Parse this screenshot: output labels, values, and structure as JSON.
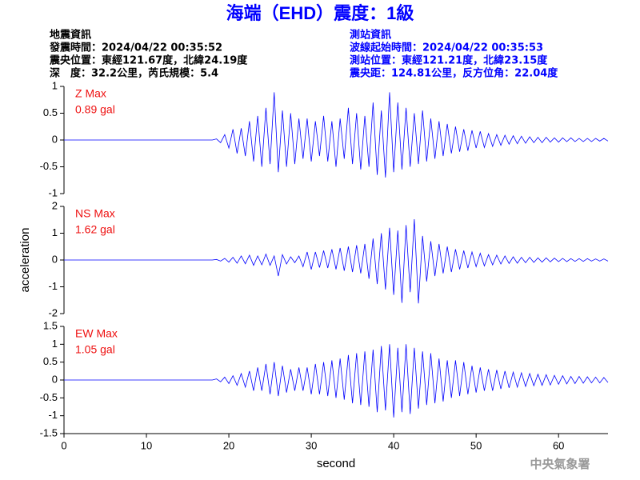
{
  "title": "海端（EHD）震度：1級",
  "left_info": [
    "地震資訊",
    "發震時間：2024/04/22 00:35:52",
    "震央位置：東經121.67度，北緯24.19度",
    "深　度：32.2公里，芮氏規模：5.4"
  ],
  "right_info": [
    "測站資訊",
    "波線起始時間：2024/04/22 00:35:53",
    "測站位置：東經121.21度，北緯23.15度",
    "震央距：124.81公里，反方位角：22.04度"
  ],
  "footer": "中央氣象署",
  "chart_data": [
    {
      "type": "line",
      "label": "Z Max",
      "max_label": "0.89 gal",
      "color": "#0000ff",
      "ylim": [
        -1,
        1
      ],
      "yticks": [
        -1,
        -0.5,
        0,
        0.5,
        1
      ],
      "xlim": [
        0,
        66
      ],
      "x": [
        0,
        18,
        18.5,
        19,
        19.5,
        20,
        20.5,
        21,
        21.5,
        22,
        22.5,
        23,
        23.5,
        24,
        24.5,
        25,
        25.5,
        26,
        26.5,
        27,
        27.5,
        28,
        28.5,
        29,
        29.5,
        30,
        30.5,
        31,
        31.5,
        32,
        32.5,
        33,
        33.5,
        34,
        34.5,
        35,
        35.5,
        36,
        36.5,
        37,
        37.5,
        38,
        38.5,
        39,
        39.5,
        40,
        40.5,
        41,
        41.5,
        42,
        42.5,
        43,
        43.5,
        44,
        44.5,
        45,
        45.5,
        46,
        46.5,
        47,
        47.5,
        48,
        48.5,
        49,
        49.5,
        50,
        50.5,
        51,
        51.5,
        52,
        52.5,
        53,
        53.5,
        54,
        54.5,
        55,
        55.5,
        56,
        56.5,
        57,
        57.5,
        58,
        58.5,
        59,
        59.5,
        60,
        60.5,
        61,
        61.5,
        62,
        62.5,
        63,
        63.5,
        64,
        64.5,
        65,
        65.5,
        66
      ],
      "values": [
        0,
        0,
        0.02,
        -0.05,
        0.1,
        -0.15,
        0.2,
        -0.25,
        0.22,
        -0.3,
        0.35,
        -0.4,
        0.45,
        -0.5,
        0.6,
        -0.45,
        0.89,
        -0.6,
        0.55,
        -0.5,
        0.5,
        -0.45,
        0.4,
        -0.35,
        0.4,
        -0.4,
        0.35,
        -0.3,
        0.45,
        -0.4,
        0.35,
        -0.5,
        0.4,
        -0.35,
        0.6,
        -0.45,
        0.5,
        -0.55,
        0.45,
        -0.5,
        0.7,
        -0.65,
        0.55,
        -0.7,
        0.89,
        -0.6,
        0.7,
        -0.55,
        0.6,
        -0.5,
        0.5,
        -0.45,
        0.55,
        -0.4,
        0.4,
        -0.35,
        0.35,
        -0.3,
        0.3,
        -0.25,
        0.25,
        -0.22,
        0.2,
        -0.2,
        0.18,
        -0.15,
        0.16,
        -0.14,
        0.12,
        -0.12,
        0.1,
        -0.1,
        0.09,
        -0.08,
        0.08,
        -0.07,
        0.07,
        -0.06,
        0.06,
        -0.05,
        0.05,
        -0.05,
        0.05,
        -0.04,
        0.04,
        -0.04,
        0.04,
        -0.03,
        0.04,
        -0.03,
        0.03,
        -0.03,
        0.03,
        -0.03,
        0.03,
        -0.02,
        0.03,
        -0.02
      ]
    },
    {
      "type": "line",
      "label": "NS Max",
      "max_label": "1.62 gal",
      "color": "#0000ff",
      "ylabel": "acceleration",
      "ylim": [
        -2,
        2
      ],
      "yticks": [
        -2,
        -1,
        0,
        1,
        2
      ],
      "xlim": [
        0,
        66
      ],
      "x": [
        0,
        18,
        18.5,
        19,
        19.5,
        20,
        20.5,
        21,
        21.5,
        22,
        22.5,
        23,
        23.5,
        24,
        24.5,
        25,
        25.5,
        26,
        26.5,
        27,
        27.5,
        28,
        28.5,
        29,
        29.5,
        30,
        30.5,
        31,
        31.5,
        32,
        32.5,
        33,
        33.5,
        34,
        34.5,
        35,
        35.5,
        36,
        36.5,
        37,
        37.5,
        38,
        38.5,
        39,
        39.5,
        40,
        40.5,
        41,
        41.5,
        42,
        42.5,
        43,
        43.5,
        44,
        44.5,
        45,
        45.5,
        46,
        46.5,
        47,
        47.5,
        48,
        48.5,
        49,
        49.5,
        50,
        50.5,
        51,
        51.5,
        52,
        52.5,
        53,
        53.5,
        54,
        54.5,
        55,
        55.5,
        56,
        56.5,
        57,
        57.5,
        58,
        58.5,
        59,
        59.5,
        60,
        60.5,
        61,
        61.5,
        62,
        62.5,
        63,
        63.5,
        64,
        64.5,
        65,
        65.5,
        66
      ],
      "values": [
        0,
        0,
        0.02,
        -0.04,
        0.06,
        -0.08,
        0.1,
        -0.12,
        0.15,
        -0.14,
        0.18,
        -0.2,
        0.15,
        -0.18,
        0.22,
        -0.2,
        0.15,
        -0.6,
        0.2,
        -0.15,
        0.12,
        -0.1,
        0.15,
        -0.25,
        0.3,
        -0.35,
        0.3,
        -0.28,
        0.35,
        -0.3,
        0.4,
        -0.35,
        0.45,
        -0.4,
        0.5,
        -0.45,
        0.55,
        -0.5,
        0.6,
        -0.7,
        0.8,
        -0.9,
        1.0,
        -1.1,
        1.2,
        -1.3,
        1.1,
        -1.6,
        1.3,
        -1.2,
        1.52,
        -1.62,
        0.9,
        -0.8,
        0.7,
        -0.6,
        0.6,
        -0.5,
        0.5,
        -0.45,
        0.4,
        -0.35,
        0.35,
        -0.3,
        0.3,
        -0.25,
        0.25,
        -0.22,
        0.2,
        -0.18,
        0.18,
        -0.15,
        0.15,
        -0.13,
        0.12,
        -0.12,
        0.1,
        -0.1,
        0.1,
        -0.09,
        0.08,
        -0.08,
        0.08,
        -0.07,
        0.07,
        -0.06,
        0.06,
        -0.06,
        0.05,
        -0.05,
        0.05,
        -0.05,
        0.05,
        -0.04,
        0.04,
        -0.04,
        0.04,
        -0.04
      ]
    },
    {
      "type": "line",
      "label": "EW Max",
      "max_label": "1.05 gal",
      "color": "#0000ff",
      "xlabel": "second",
      "ylim": [
        -1.5,
        1.5
      ],
      "yticks": [
        -1.5,
        -1,
        -0.5,
        0,
        0.5,
        1,
        1.5
      ],
      "xlim": [
        0,
        66
      ],
      "xticks": [
        0,
        10,
        20,
        30,
        40,
        50,
        60
      ],
      "x": [
        0,
        18,
        18.5,
        19,
        19.5,
        20,
        20.5,
        21,
        21.5,
        22,
        22.5,
        23,
        23.5,
        24,
        24.5,
        25,
        25.5,
        26,
        26.5,
        27,
        27.5,
        28,
        28.5,
        29,
        29.5,
        30,
        30.5,
        31,
        31.5,
        32,
        32.5,
        33,
        33.5,
        34,
        34.5,
        35,
        35.5,
        36,
        36.5,
        37,
        37.5,
        38,
        38.5,
        39,
        39.5,
        40,
        40.5,
        41,
        41.5,
        42,
        42.5,
        43,
        43.5,
        44,
        44.5,
        45,
        45.5,
        46,
        46.5,
        47,
        47.5,
        48,
        48.5,
        49,
        49.5,
        50,
        50.5,
        51,
        51.5,
        52,
        52.5,
        53,
        53.5,
        54,
        54.5,
        55,
        55.5,
        56,
        56.5,
        57,
        57.5,
        58,
        58.5,
        59,
        59.5,
        60,
        60.5,
        61,
        61.5,
        62,
        62.5,
        63,
        63.5,
        64,
        64.5,
        65,
        65.5,
        66
      ],
      "values": [
        0,
        0,
        0.03,
        -0.05,
        0.08,
        -0.1,
        0.12,
        -0.15,
        0.18,
        -0.2,
        0.25,
        -0.3,
        0.35,
        -0.3,
        0.45,
        -0.4,
        0.5,
        -0.45,
        0.4,
        -0.35,
        0.3,
        -0.3,
        0.35,
        -0.3,
        0.35,
        -0.4,
        0.45,
        -0.4,
        0.5,
        -0.45,
        0.55,
        -0.5,
        0.6,
        -0.55,
        0.7,
        -0.65,
        0.75,
        -0.7,
        0.8,
        -0.75,
        0.85,
        -0.9,
        0.95,
        -0.85,
        1.0,
        -1.05,
        0.9,
        -0.9,
        1.0,
        -0.95,
        0.9,
        -0.8,
        0.8,
        -0.7,
        0.75,
        -0.65,
        0.6,
        -0.6,
        0.55,
        -0.5,
        0.55,
        -0.45,
        0.5,
        -0.4,
        0.4,
        -0.35,
        0.35,
        -0.3,
        0.3,
        -0.3,
        0.28,
        -0.25,
        0.25,
        -0.22,
        0.22,
        -0.2,
        0.2,
        -0.18,
        0.18,
        -0.16,
        0.16,
        -0.15,
        0.15,
        -0.14,
        0.13,
        -0.12,
        0.12,
        -0.11,
        0.1,
        -0.1,
        0.1,
        -0.09,
        0.09,
        -0.08,
        0.08,
        -0.08,
        0.07,
        -0.07
      ]
    }
  ]
}
